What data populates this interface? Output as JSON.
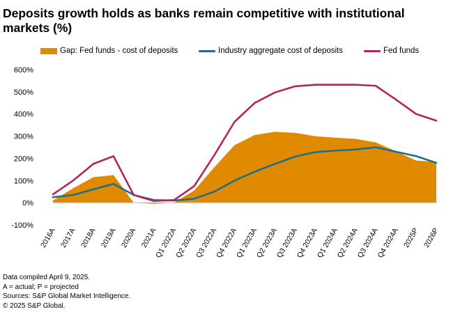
{
  "title": "Deposits growth holds as banks remain competitive with institutional markets (%)",
  "footnotes": {
    "line1": "Data compiled April 9, 2025.",
    "line2": "A = actual; P = projected",
    "line3": "Sources: S&P Global Market Intelligence.",
    "line4": "© 2025 S&P Global."
  },
  "colors": {
    "gap": "#E08A00",
    "cost": "#1F6E8C",
    "fed": "#B5245A"
  },
  "chart_data": {
    "type": "area",
    "categories": [
      "2016A",
      "2017A",
      "2018A",
      "2019A",
      "2020A",
      "2021A",
      "Q1 2022A",
      "Q2 2022A",
      "Q3 2022A",
      "Q4 2022A",
      "Q1 2023A",
      "Q2 2023A",
      "Q3 2023A",
      "Q4 2023A",
      "Q1 2024A",
      "Q2 2024A",
      "Q3 2024A",
      "Q4 2024A",
      "2025P",
      "2026P"
    ],
    "series": [
      {
        "name": "Gap: Fed funds - cost of deposits",
        "type": "area",
        "values": [
          10,
          65,
          115,
          125,
          0,
          -5,
          0,
          55,
          160,
          260,
          305,
          320,
          315,
          300,
          293,
          288,
          272,
          232,
          190,
          185
        ]
      },
      {
        "name": "Industry aggregate cost of deposits",
        "type": "line",
        "values": [
          25,
          35,
          60,
          85,
          35,
          12,
          10,
          18,
          50,
          100,
          140,
          175,
          208,
          228,
          235,
          240,
          250,
          230,
          210,
          180
        ]
      },
      {
        "name": "Fed funds",
        "type": "line",
        "values": [
          38,
          100,
          175,
          210,
          35,
          8,
          12,
          75,
          215,
          365,
          450,
          497,
          525,
          532,
          532,
          532,
          527,
          465,
          400,
          370
        ]
      }
    ],
    "y_ticks": [
      "600%",
      "500%",
      "400%",
      "300%",
      "200%",
      "100%",
      "0%",
      "-100%"
    ],
    "ylim": [
      -100,
      600
    ],
    "xlabel": "",
    "ylabel": "",
    "grid": false,
    "legend": "top"
  }
}
